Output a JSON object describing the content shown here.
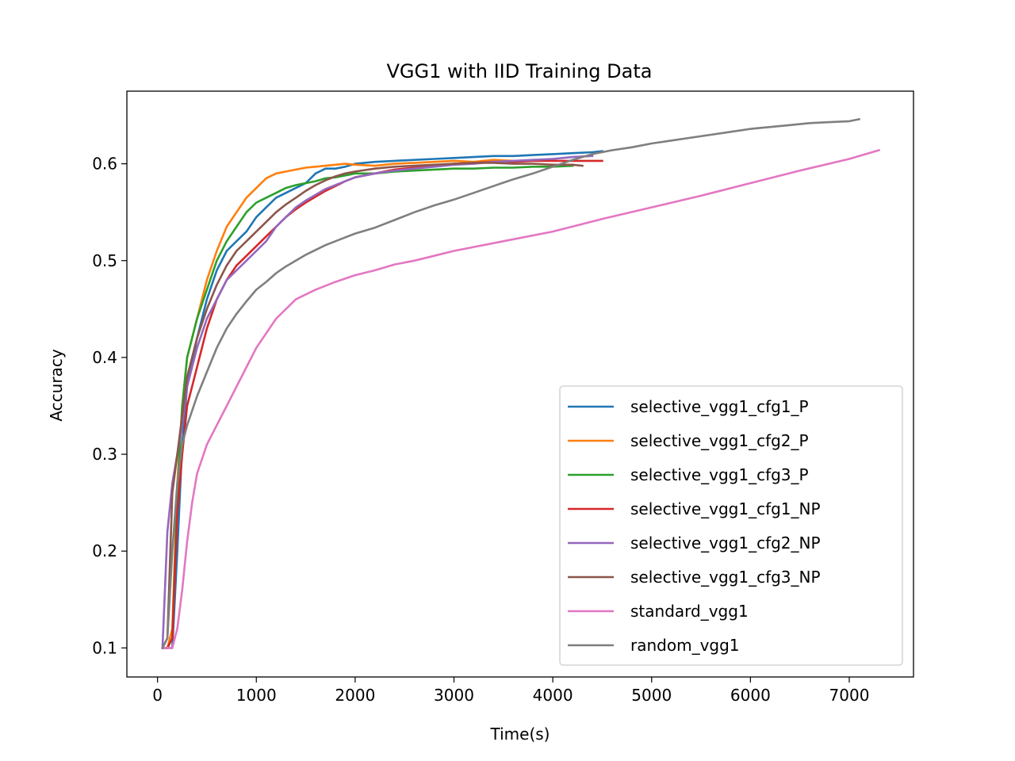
{
  "chart_data": {
    "type": "line",
    "title": "VGG1 with IID Training Data",
    "xlabel": "Time(s)",
    "ylabel": "Accuracy",
    "xlim": [
      -310,
      7650
    ],
    "ylim": [
      0.07,
      0.675
    ],
    "xticks": [
      0,
      1000,
      2000,
      3000,
      4000,
      5000,
      6000,
      7000
    ],
    "yticks": [
      0.1,
      0.2,
      0.3,
      0.4,
      0.5,
      0.6
    ],
    "xtick_labels": [
      "0",
      "1000",
      "2000",
      "3000",
      "4000",
      "5000",
      "6000",
      "7000"
    ],
    "ytick_labels": [
      "0.1",
      "0.2",
      "0.3",
      "0.4",
      "0.5",
      "0.6"
    ],
    "grid": false,
    "legend": "lower-right",
    "series": [
      {
        "name": "selective_vgg1_cfg1_P",
        "color": "#1f77b4",
        "x": [
          50,
          100,
          150,
          200,
          250,
          300,
          400,
          500,
          600,
          700,
          800,
          900,
          1000,
          1100,
          1200,
          1300,
          1400,
          1500,
          1600,
          1700,
          1800,
          1900,
          2000,
          2200,
          2400,
          2600,
          2800,
          3000,
          3200,
          3400,
          3600,
          3800,
          4000,
          4200,
          4400,
          4500
        ],
        "y": [
          0.1,
          0.1,
          0.1,
          0.2,
          0.31,
          0.37,
          0.42,
          0.46,
          0.49,
          0.51,
          0.52,
          0.53,
          0.545,
          0.555,
          0.565,
          0.57,
          0.575,
          0.58,
          0.59,
          0.595,
          0.595,
          0.597,
          0.6,
          0.602,
          0.603,
          0.604,
          0.605,
          0.606,
          0.607,
          0.608,
          0.608,
          0.609,
          0.61,
          0.611,
          0.612,
          0.613
        ]
      },
      {
        "name": "selective_vgg1_cfg2_P",
        "color": "#ff7f0e",
        "x": [
          50,
          100,
          150,
          200,
          250,
          300,
          400,
          500,
          600,
          700,
          800,
          900,
          1000,
          1100,
          1200,
          1300,
          1400,
          1500,
          1600,
          1700,
          1800,
          1900,
          2000,
          2200,
          2400,
          2600,
          2800,
          3000,
          3200,
          3400,
          3600
        ],
        "y": [
          0.1,
          0.1,
          0.12,
          0.27,
          0.35,
          0.4,
          0.44,
          0.48,
          0.51,
          0.535,
          0.55,
          0.565,
          0.575,
          0.585,
          0.59,
          0.592,
          0.594,
          0.596,
          0.597,
          0.598,
          0.599,
          0.6,
          0.599,
          0.598,
          0.6,
          0.601,
          0.602,
          0.603,
          0.602,
          0.604,
          0.603
        ]
      },
      {
        "name": "selective_vgg1_cfg3_P",
        "color": "#2ca02c",
        "x": [
          50,
          100,
          150,
          200,
          250,
          300,
          400,
          500,
          600,
          700,
          800,
          900,
          1000,
          1100,
          1200,
          1300,
          1400,
          1500,
          1600,
          1700,
          1800,
          1900,
          2000,
          2200,
          2400,
          2600,
          2800,
          3000,
          3200,
          3400,
          3600,
          3800,
          4000,
          4200
        ],
        "y": [
          0.1,
          0.1,
          0.11,
          0.26,
          0.35,
          0.4,
          0.44,
          0.47,
          0.5,
          0.52,
          0.535,
          0.55,
          0.56,
          0.565,
          0.57,
          0.575,
          0.578,
          0.58,
          0.582,
          0.585,
          0.586,
          0.588,
          0.59,
          0.59,
          0.592,
          0.593,
          0.594,
          0.595,
          0.595,
          0.596,
          0.596,
          0.597,
          0.597,
          0.598
        ]
      },
      {
        "name": "selective_vgg1_cfg1_NP",
        "color": "#d62728",
        "x": [
          50,
          100,
          150,
          200,
          250,
          300,
          400,
          500,
          600,
          700,
          800,
          900,
          1000,
          1100,
          1200,
          1300,
          1400,
          1500,
          1600,
          1700,
          1800,
          1900,
          2000,
          2200,
          2400,
          2600,
          2800,
          3000,
          3200,
          3400,
          3600,
          3800,
          4000,
          4200,
          4400,
          4500
        ],
        "y": [
          0.1,
          0.1,
          0.11,
          0.24,
          0.3,
          0.35,
          0.39,
          0.43,
          0.46,
          0.48,
          0.495,
          0.505,
          0.515,
          0.525,
          0.535,
          0.545,
          0.553,
          0.56,
          0.566,
          0.572,
          0.577,
          0.582,
          0.586,
          0.59,
          0.594,
          0.596,
          0.598,
          0.6,
          0.601,
          0.602,
          0.602,
          0.603,
          0.603,
          0.603,
          0.603,
          0.603
        ]
      },
      {
        "name": "selective_vgg1_cfg2_NP",
        "color": "#9467bd",
        "x": [
          50,
          100,
          150,
          200,
          250,
          300,
          400,
          500,
          600,
          700,
          800,
          900,
          1000,
          1100,
          1200,
          1300,
          1400,
          1500,
          1600,
          1700,
          1800,
          1900,
          2000,
          2200,
          2400,
          2600,
          2800,
          3000,
          3200,
          3400,
          3600,
          3800,
          4000,
          4200,
          4400
        ],
        "y": [
          0.1,
          0.22,
          0.27,
          0.3,
          0.33,
          0.37,
          0.41,
          0.44,
          0.46,
          0.48,
          0.49,
          0.5,
          0.51,
          0.52,
          0.535,
          0.545,
          0.555,
          0.562,
          0.568,
          0.574,
          0.578,
          0.582,
          0.586,
          0.59,
          0.593,
          0.595,
          0.597,
          0.599,
          0.6,
          0.602,
          0.603,
          0.604,
          0.605,
          0.607,
          0.608
        ]
      },
      {
        "name": "selective_vgg1_cfg3_NP",
        "color": "#8c564b",
        "x": [
          50,
          100,
          150,
          200,
          250,
          300,
          400,
          500,
          600,
          700,
          800,
          900,
          1000,
          1100,
          1200,
          1300,
          1400,
          1500,
          1600,
          1700,
          1800,
          1900,
          2000,
          2200,
          2400,
          2600,
          2800,
          3000,
          3200,
          3400,
          3600,
          3800,
          4000,
          4200,
          4300
        ],
        "y": [
          0.1,
          0.11,
          0.26,
          0.3,
          0.34,
          0.38,
          0.42,
          0.45,
          0.475,
          0.495,
          0.51,
          0.52,
          0.53,
          0.54,
          0.55,
          0.558,
          0.565,
          0.572,
          0.578,
          0.583,
          0.587,
          0.59,
          0.592,
          0.595,
          0.597,
          0.598,
          0.599,
          0.6,
          0.601,
          0.601,
          0.6,
          0.6,
          0.599,
          0.599,
          0.598
        ]
      },
      {
        "name": "standard_vgg1",
        "color": "#e377c2",
        "x": [
          50,
          100,
          150,
          200,
          250,
          300,
          350,
          400,
          500,
          600,
          700,
          800,
          900,
          1000,
          1200,
          1400,
          1600,
          1800,
          2000,
          2200,
          2400,
          2600,
          2800,
          3000,
          3500,
          4000,
          4500,
          5000,
          5500,
          6000,
          6500,
          7000,
          7300
        ],
        "y": [
          0.1,
          0.1,
          0.1,
          0.12,
          0.16,
          0.21,
          0.25,
          0.28,
          0.31,
          0.33,
          0.35,
          0.37,
          0.39,
          0.41,
          0.44,
          0.46,
          0.47,
          0.478,
          0.485,
          0.49,
          0.496,
          0.5,
          0.505,
          0.51,
          0.52,
          0.53,
          0.543,
          0.555,
          0.567,
          0.58,
          0.593,
          0.605,
          0.614
        ]
      },
      {
        "name": "random_vgg1",
        "color": "#7f7f7f",
        "x": [
          50,
          100,
          150,
          200,
          250,
          300,
          400,
          500,
          600,
          700,
          800,
          900,
          1000,
          1100,
          1200,
          1300,
          1400,
          1500,
          1600,
          1700,
          1800,
          1900,
          2000,
          2200,
          2400,
          2600,
          2800,
          3000,
          3200,
          3400,
          3600,
          3800,
          4000,
          4200,
          4400,
          4600,
          4800,
          5000,
          5200,
          5400,
          5600,
          5800,
          6000,
          6200,
          6400,
          6600,
          6800,
          7000,
          7100
        ],
        "y": [
          0.1,
          0.11,
          0.2,
          0.27,
          0.31,
          0.33,
          0.36,
          0.385,
          0.41,
          0.43,
          0.445,
          0.458,
          0.47,
          0.478,
          0.487,
          0.494,
          0.5,
          0.506,
          0.511,
          0.516,
          0.52,
          0.524,
          0.528,
          0.534,
          0.542,
          0.55,
          0.557,
          0.563,
          0.57,
          0.577,
          0.584,
          0.59,
          0.597,
          0.604,
          0.61,
          0.614,
          0.617,
          0.621,
          0.624,
          0.627,
          0.63,
          0.633,
          0.636,
          0.638,
          0.64,
          0.642,
          0.643,
          0.644,
          0.646
        ]
      }
    ]
  }
}
